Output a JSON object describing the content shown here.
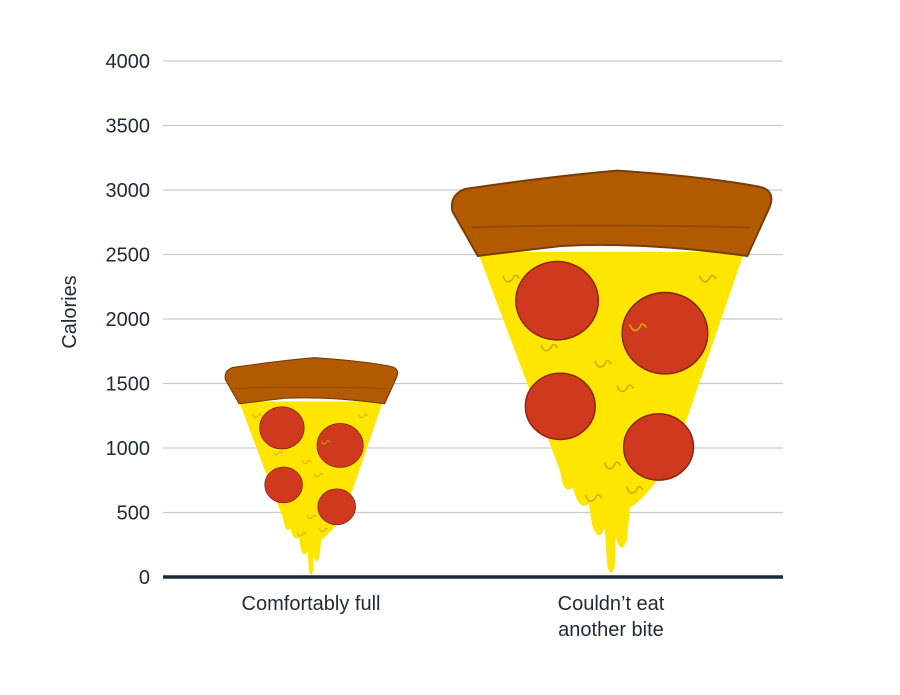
{
  "chart_data": {
    "type": "bar",
    "title": "",
    "ylabel": "Calories",
    "xlabel": "",
    "ylim": [
      0,
      4000
    ],
    "yticks": [
      0,
      500,
      1000,
      1500,
      2000,
      2500,
      3000,
      3500,
      4000
    ],
    "grid": true,
    "categories": [
      "Comfortably full",
      "Couldn’t eat another bite"
    ],
    "category_lines": [
      [
        "Comfortably full"
      ],
      [
        "Couldn’t eat",
        "another bite"
      ]
    ],
    "values": [
      1700,
      3150
    ],
    "mark_style": "pizza-slice",
    "colors": {
      "crust": "#b15a00",
      "crust_edge": "#7a3c00",
      "cheese": "#ffe600",
      "cheese_line": "#d9a800",
      "pepperoni": "#cf3a1f",
      "pepperoni_edge": "#8e2210",
      "grid": "#c9c9c9",
      "baseline": "#1e2a35",
      "text": "#1e2a35"
    }
  }
}
